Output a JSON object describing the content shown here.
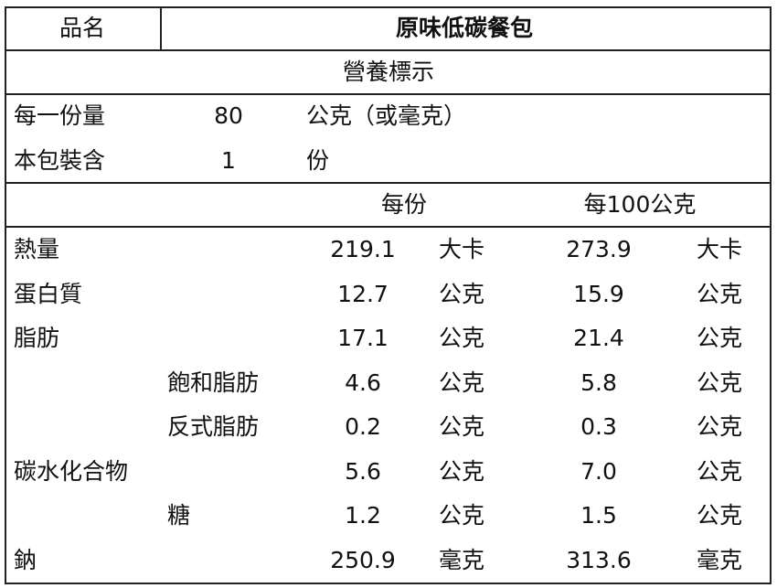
{
  "product_label": "品名",
  "product_name": "原味低碳餐包",
  "title": "營養標示",
  "serving": {
    "label": "每一份量",
    "value": "80",
    "unit": "公克（或毫克）"
  },
  "servings_per_pack": {
    "label": "本包裝含",
    "value": "1",
    "unit": "份"
  },
  "headers": {
    "per_serving": "每份",
    "per_100g": "每100公克"
  },
  "rows": [
    {
      "name": "熱量",
      "sub": "",
      "v1": "219.1",
      "u1": "大卡",
      "v2": "273.9",
      "u2": "大卡"
    },
    {
      "name": "蛋白質",
      "sub": "",
      "v1": "12.7",
      "u1": "公克",
      "v2": "15.9",
      "u2": "公克"
    },
    {
      "name": "脂肪",
      "sub": "",
      "v1": "17.1",
      "u1": "公克",
      "v2": "21.4",
      "u2": "公克"
    },
    {
      "name": "",
      "sub": "飽和脂肪",
      "v1": "4.6",
      "u1": "公克",
      "v2": "5.8",
      "u2": "公克"
    },
    {
      "name": "",
      "sub": "反式脂肪",
      "v1": "0.2",
      "u1": "公克",
      "v2": "0.3",
      "u2": "公克"
    },
    {
      "name": "碳水化合物",
      "sub": "",
      "v1": "5.6",
      "u1": "公克",
      "v2": "7.0",
      "u2": "公克"
    },
    {
      "name": "",
      "sub": "糖",
      "v1": "1.2",
      "u1": "公克",
      "v2": "1.5",
      "u2": "公克"
    },
    {
      "name": "鈉",
      "sub": "",
      "v1": "250.9",
      "u1": "毫克",
      "v2": "313.6",
      "u2": "毫克"
    }
  ]
}
